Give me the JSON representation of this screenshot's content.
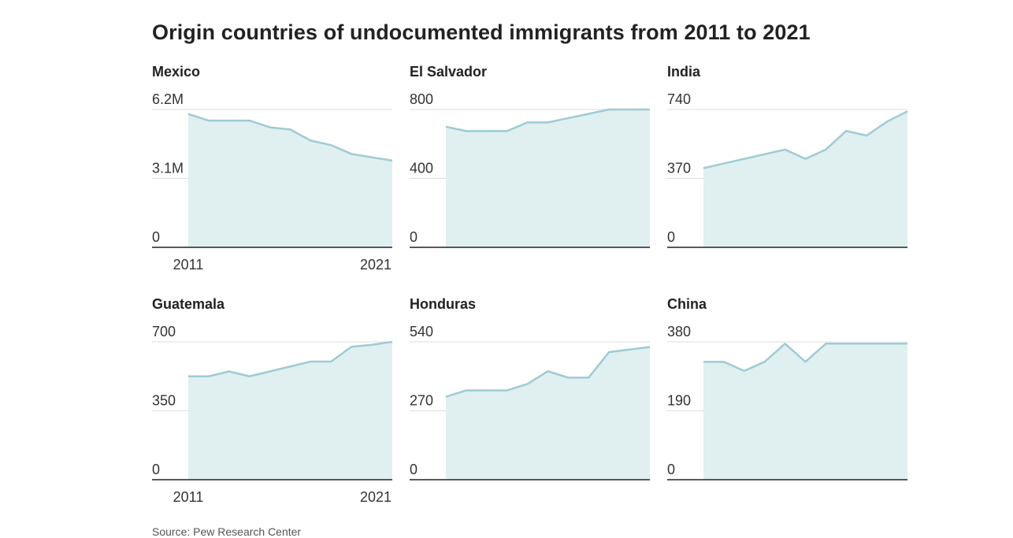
{
  "title": "Origin countries of undocumented immigrants from 2011 to 2021",
  "source": "Source: Pew Research Center",
  "colors": {
    "line": "#9ecbd4",
    "area": "#e0eff0",
    "baseline": "#222222",
    "grid": "#dddddd"
  },
  "chart_data": [
    {
      "type": "area",
      "title": "Mexico",
      "x": [
        2011,
        2012,
        2013,
        2014,
        2015,
        2016,
        2017,
        2018,
        2019,
        2020,
        2021
      ],
      "values": [
        6.0,
        5.7,
        5.7,
        5.7,
        5.4,
        5.3,
        4.8,
        4.6,
        4.2,
        4.05,
        3.9
      ],
      "ylim": [
        0,
        6.2
      ],
      "yticks": [
        "0",
        "3.1M",
        "6.2M"
      ],
      "xticks": [
        "2011",
        "2021"
      ]
    },
    {
      "type": "area",
      "title": "El Salvador",
      "x": [
        2011,
        2012,
        2013,
        2014,
        2015,
        2016,
        2017,
        2018,
        2019,
        2020,
        2021
      ],
      "values": [
        700,
        675,
        675,
        675,
        725,
        725,
        750,
        775,
        800,
        800,
        800
      ],
      "ylim": [
        0,
        800
      ],
      "yticks": [
        "0",
        "400",
        "800"
      ],
      "xticks": []
    },
    {
      "type": "area",
      "title": "India",
      "x": [
        2011,
        2012,
        2013,
        2014,
        2015,
        2016,
        2017,
        2018,
        2019,
        2020,
        2021
      ],
      "values": [
        425,
        450,
        475,
        500,
        525,
        475,
        525,
        625,
        600,
        675,
        730
      ],
      "ylim": [
        0,
        740
      ],
      "yticks": [
        "0",
        "370",
        "740"
      ],
      "xticks": []
    },
    {
      "type": "area",
      "title": "Guatemala",
      "x": [
        2011,
        2012,
        2013,
        2014,
        2015,
        2016,
        2017,
        2018,
        2019,
        2020,
        2021
      ],
      "values": [
        525,
        525,
        550,
        525,
        550,
        575,
        600,
        600,
        675,
        685,
        700
      ],
      "ylim": [
        0,
        700
      ],
      "yticks": [
        "0",
        "350",
        "700"
      ],
      "xticks": [
        "2011",
        "2021"
      ]
    },
    {
      "type": "area",
      "title": "Honduras",
      "x": [
        2011,
        2012,
        2013,
        2014,
        2015,
        2016,
        2017,
        2018,
        2019,
        2020,
        2021
      ],
      "values": [
        325,
        350,
        350,
        350,
        375,
        425,
        400,
        400,
        500,
        510,
        520
      ],
      "ylim": [
        0,
        540
      ],
      "yticks": [
        "0",
        "270",
        "540"
      ],
      "xticks": []
    },
    {
      "type": "area",
      "title": "China",
      "x": [
        2011,
        2012,
        2013,
        2014,
        2015,
        2016,
        2017,
        2018,
        2019,
        2020,
        2021
      ],
      "values": [
        325,
        325,
        300,
        325,
        375,
        325,
        375,
        375,
        375,
        375,
        375
      ],
      "ylim": [
        0,
        380
      ],
      "yticks": [
        "0",
        "190",
        "380"
      ],
      "xticks": []
    }
  ]
}
